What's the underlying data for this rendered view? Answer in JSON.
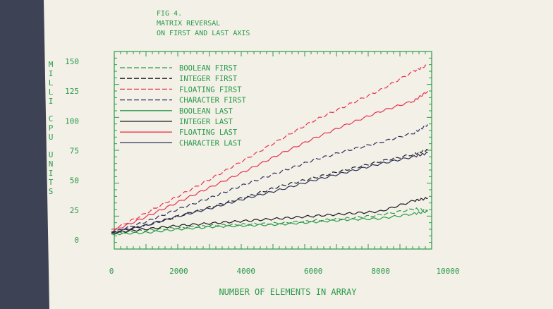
{
  "figure": {
    "number": "FIG 4.",
    "title_line1": "MATRIX REVERSAL",
    "title_line2": "ON FIRST AND LAST AXIS"
  },
  "colors": {
    "paper": "#f3f0e7",
    "ink_green": "#2a9a4a",
    "black": "#1c1b1f",
    "red": "#e8334f",
    "navy": "#2b2f5c"
  },
  "chart_data": {
    "type": "line",
    "xlabel": "NUMBER OF ELEMENTS IN ARRAY",
    "ylabel": "MILLI CPU UNITS",
    "xlim": [
      0,
      10000
    ],
    "ylim": [
      0,
      150
    ],
    "xticks": [
      "0",
      "2000",
      "4000",
      "6000",
      "8000",
      "10000"
    ],
    "yticks": [
      "0",
      "25",
      "50",
      "75",
      "100",
      "125",
      "150"
    ],
    "legend_position": "top-left",
    "grid": false,
    "x": [
      0,
      1000,
      2000,
      3000,
      4000,
      5000,
      6000,
      7000,
      8000,
      9000,
      9400
    ],
    "series": [
      {
        "name": "BOOLEAN FIRST",
        "style": "dashed",
        "color": "#2a9a4a",
        "values": [
          5,
          8,
          10,
          12,
          13,
          14,
          16,
          18,
          21,
          26,
          25
        ]
      },
      {
        "name": "INTEGER FIRST",
        "style": "dashed",
        "color": "#1c1b1f",
        "values": [
          6,
          12,
          20,
          28,
          36,
          45,
          52,
          59,
          66,
          72,
          76
        ]
      },
      {
        "name": "FLOATING FIRST",
        "style": "dashed",
        "color": "#e8334f",
        "values": [
          8,
          22,
          37,
          52,
          68,
          84,
          100,
          113,
          126,
          142,
          147
        ]
      },
      {
        "name": "CHARACTER FIRST",
        "style": "dashed",
        "color": "#2b2f5c",
        "values": [
          6,
          15,
          26,
          36,
          47,
          57,
          67,
          75,
          82,
          90,
          97
        ]
      },
      {
        "name": "BOOLEAN LAST",
        "style": "solid",
        "color": "#2a9a4a",
        "values": [
          5,
          6,
          9,
          11,
          12,
          13,
          15,
          17,
          18,
          22,
          24
        ]
      },
      {
        "name": "INTEGER LAST",
        "style": "solid",
        "color": "#1c1b1f",
        "values": [
          6,
          9,
          12,
          14,
          16,
          18,
          20,
          22,
          24,
          33,
          35
        ]
      },
      {
        "name": "FLOATING LAST",
        "style": "solid",
        "color": "#e8334f",
        "values": [
          7,
          19,
          32,
          45,
          58,
          72,
          85,
          97,
          108,
          117,
          125
        ]
      },
      {
        "name": "CHARACTER LAST",
        "style": "solid",
        "color": "#2b2f5c",
        "values": [
          6,
          12,
          20,
          27,
          35,
          42,
          50,
          57,
          64,
          70,
          73
        ]
      }
    ]
  }
}
